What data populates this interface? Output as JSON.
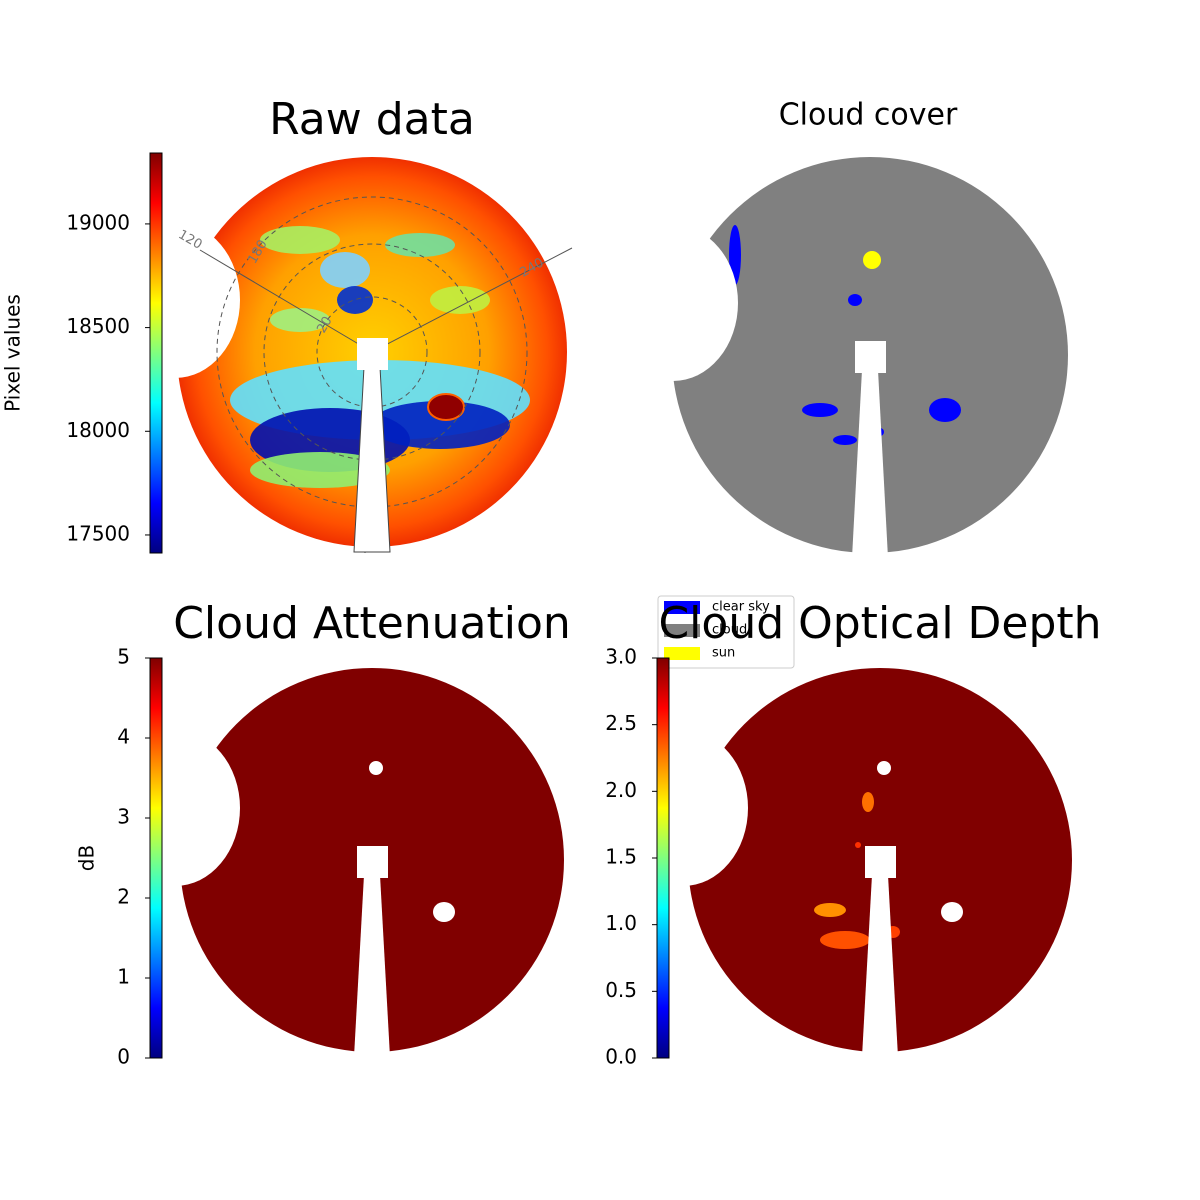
{
  "chart_data": [
    {
      "type": "image",
      "title": "Raw data",
      "colorbar": {
        "label": "Pixel values",
        "lim": [
          17413,
          19342
        ],
        "ticks": [
          17500,
          18000,
          18500,
          19000
        ]
      },
      "polar_labels": [
        "120",
        "180",
        "20",
        "240"
      ]
    },
    {
      "type": "image",
      "title": "Cloud cover",
      "legend": {
        "loc": "upper left",
        "entries": [
          {
            "name": "clear sky",
            "color": "#0000ff"
          },
          {
            "name": "cloud",
            "color": "#808080"
          },
          {
            "name": "sun",
            "color": "#ffff00"
          }
        ]
      }
    },
    {
      "type": "image",
      "title": "Cloud Attenuation",
      "colorbar": {
        "label": "dB",
        "lim": [
          0,
          5
        ],
        "ticks": [
          0,
          1,
          2,
          3,
          4,
          5
        ]
      }
    },
    {
      "type": "image",
      "title": "Cloud Optical Depth",
      "colorbar": {
        "lim": [
          0,
          3
        ],
        "ticks": [
          {
            "value": 0,
            "label": "0.0"
          },
          0.5,
          {
            "value": 1,
            "label": "1.0"
          },
          1.5,
          {
            "value": 2,
            "label": "2.0"
          },
          2.5,
          {
            "value": 3,
            "label": "3.0"
          }
        ]
      }
    }
  ]
}
